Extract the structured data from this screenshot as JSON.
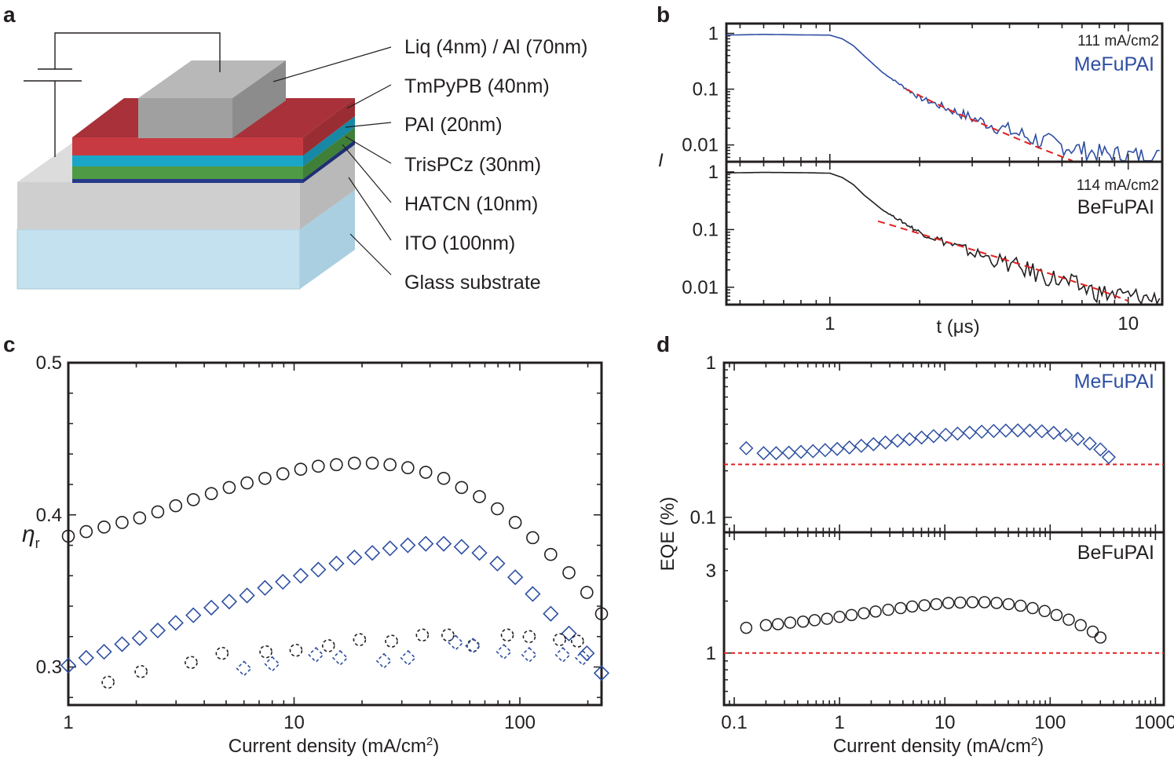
{
  "colors": {
    "blue": "#2e4fa2",
    "black": "#231f20",
    "red": "#e02020"
  },
  "panel_a": {
    "label": "a",
    "layers": [
      {
        "label": "Liq (4nm) / Al (70nm)",
        "color": "#a0a0a0"
      },
      {
        "label": "TmPyPB (40nm)",
        "color": "#c83a41"
      },
      {
        "label": "PAI (20nm)",
        "color": "#1ba6c8"
      },
      {
        "label": "TrisPCz (30nm)",
        "color": "#4f9a45"
      },
      {
        "label": "HATCN (10nm)",
        "color": "#273a8a"
      },
      {
        "label": "ITO (100nm)",
        "color": "#cfcfcf"
      },
      {
        "label": "Glass substrate",
        "color": "#c3e1ef"
      }
    ]
  },
  "chart_data": [
    {
      "panel": "b",
      "type": "line",
      "xlabel": "t (μs)",
      "ylabel": "I",
      "xscale": "log",
      "yscale": "log",
      "xlim": [
        0.45,
        13
      ],
      "ylim": [
        0.005,
        1.5
      ],
      "xticks": [
        1,
        10
      ],
      "yticks": [
        1,
        0.1,
        0.01
      ],
      "subplots": [
        {
          "name": "MeFuPAI",
          "annotation": "111 mA/cm2",
          "color": "#2e4fa2",
          "decay": {
            "t": [
              0.45,
              0.6,
              0.8,
              1.0,
              1.1,
              1.2,
              1.3,
              1.5,
              2.0,
              3.0,
              5.0,
              8.0,
              13.0
            ],
            "I": [
              0.93,
              0.96,
              0.94,
              0.93,
              0.8,
              0.6,
              0.4,
              0.2,
              0.07,
              0.03,
              0.012,
              0.007,
              0.006
            ]
          },
          "fit": {
            "t": [
              1.8,
              2.5,
              3.5,
              5.0,
              6.5
            ],
            "I": [
              0.1,
              0.043,
              0.02,
              0.009,
              0.0052
            ]
          }
        },
        {
          "name": "BeFuPAI",
          "annotation": "114 mA/cm2",
          "color": "#231f20",
          "decay": {
            "t": [
              0.45,
              0.6,
              0.8,
              1.0,
              1.1,
              1.2,
              1.3,
              1.5,
              2.0,
              3.0,
              5.0,
              8.0,
              13.0
            ],
            "I": [
              0.96,
              0.98,
              0.97,
              0.95,
              0.8,
              0.6,
              0.4,
              0.22,
              0.09,
              0.04,
              0.017,
              0.008,
              0.006
            ]
          },
          "fit": {
            "t": [
              1.45,
              2.0,
              3.0,
              5.0,
              8.0,
              10.0
            ],
            "I": [
              0.14,
              0.085,
              0.045,
              0.02,
              0.009,
              0.0058
            ]
          }
        }
      ]
    },
    {
      "panel": "c",
      "type": "scatter",
      "xlabel": "Current density (mA/cm",
      "xlabel_sup": "2",
      "xlabel_end": ")",
      "ylabel": "η",
      "ylabel_sub": "r",
      "xscale": "log",
      "xlim": [
        1,
        230
      ],
      "ylim": [
        0.275,
        0.5
      ],
      "xticks": [
        1,
        10,
        100
      ],
      "yticks": [
        0.3,
        0.4,
        0.5
      ],
      "series": [
        {
          "name": "BeFuPAI",
          "marker": "circle",
          "dashed": false,
          "x": [
            1,
            1.2,
            1.44,
            1.73,
            2.07,
            2.49,
            2.99,
            3.58,
            4.3,
            5.16,
            6.19,
            7.43,
            8.92,
            10.7,
            12.8,
            15.4,
            18.5,
            22.2,
            26.6,
            31.9,
            38.3,
            46,
            55.2,
            66.2,
            79.5,
            95.4,
            114,
            137,
            165,
            198,
            230
          ],
          "y": [
            0.386,
            0.389,
            0.392,
            0.395,
            0.398,
            0.402,
            0.406,
            0.41,
            0.414,
            0.418,
            0.421,
            0.424,
            0.427,
            0.43,
            0.432,
            0.433,
            0.434,
            0.434,
            0.433,
            0.431,
            0.428,
            0.424,
            0.418,
            0.412,
            0.404,
            0.395,
            0.385,
            0.374,
            0.362,
            0.349,
            0.335
          ]
        },
        {
          "name": "MeFuPAI",
          "marker": "diamond",
          "dashed": false,
          "x": [
            1,
            1.2,
            1.44,
            1.73,
            2.07,
            2.49,
            2.99,
            3.58,
            4.3,
            5.16,
            6.19,
            7.43,
            8.92,
            10.7,
            12.8,
            15.4,
            18.5,
            22.2,
            26.6,
            31.9,
            38.3,
            46,
            55.2,
            66.2,
            79.5,
            95.4,
            114,
            137,
            165,
            198,
            230
          ],
          "y": [
            0.301,
            0.306,
            0.31,
            0.315,
            0.319,
            0.324,
            0.329,
            0.334,
            0.339,
            0.343,
            0.347,
            0.352,
            0.356,
            0.36,
            0.364,
            0.368,
            0.372,
            0.375,
            0.378,
            0.38,
            0.381,
            0.381,
            0.379,
            0.375,
            0.368,
            0.359,
            0.348,
            0.335,
            0.322,
            0.309,
            0.296
          ]
        },
        {
          "name": "BeFuPAI",
          "marker": "circle",
          "dashed": true,
          "x": [
            1.5,
            2.1,
            3.5,
            4.8,
            7.5,
            10.2,
            14.2,
            19.5,
            27,
            37,
            48,
            62,
            88,
            110,
            150,
            180
          ],
          "y": [
            0.29,
            0.297,
            0.303,
            0.309,
            0.31,
            0.311,
            0.314,
            0.318,
            0.317,
            0.321,
            0.321,
            0.314,
            0.321,
            0.32,
            0.318,
            0.317
          ]
        },
        {
          "name": "MeFuPAI",
          "marker": "diamond",
          "dashed": true,
          "x": [
            6,
            8,
            12.5,
            16,
            25,
            32,
            52,
            62,
            85,
            110,
            155,
            190
          ],
          "y": [
            0.299,
            0.302,
            0.308,
            0.306,
            0.304,
            0.306,
            0.316,
            0.314,
            0.31,
            0.308,
            0.308,
            0.306
          ]
        }
      ]
    },
    {
      "panel": "d",
      "type": "scatter",
      "xlabel": "Current density (mA/cm",
      "xlabel_sup": "2",
      "xlabel_end": ")",
      "ylabel": "EQE (%)",
      "xscale": "log",
      "yscale": "log",
      "xlim": [
        0.08,
        1200
      ],
      "xticks": [
        0.1,
        1,
        10,
        100,
        1000
      ],
      "subplots": [
        {
          "name": "MeFuPAI",
          "marker": "diamond",
          "color": "#2e4fa2",
          "ylim": [
            0.08,
            1
          ],
          "yticks": [
            1,
            0.1
          ],
          "reference": 0.22,
          "x": [
            0.13,
            0.19,
            0.25,
            0.33,
            0.43,
            0.56,
            0.73,
            0.95,
            1.24,
            1.61,
            2.1,
            2.73,
            3.55,
            4.62,
            6.01,
            7.82,
            10.2,
            13.2,
            17.2,
            22.4,
            29.1,
            37.9,
            49.3,
            64.1,
            83.4,
            108,
            141,
            183,
            238,
            300,
            360
          ],
          "y": [
            0.28,
            0.26,
            0.26,
            0.262,
            0.265,
            0.268,
            0.272,
            0.277,
            0.283,
            0.29,
            0.297,
            0.305,
            0.313,
            0.32,
            0.328,
            0.335,
            0.342,
            0.348,
            0.353,
            0.358,
            0.362,
            0.364,
            0.365,
            0.364,
            0.36,
            0.352,
            0.34,
            0.322,
            0.3,
            0.275,
            0.245
          ]
        },
        {
          "name": "BeFuPAI",
          "marker": "circle",
          "color": "#231f20",
          "ylim": [
            0.5,
            5
          ],
          "yticks": [
            3,
            1
          ],
          "reference": 1,
          "x": [
            0.13,
            0.2,
            0.26,
            0.34,
            0.45,
            0.58,
            0.76,
            1.0,
            1.3,
            1.7,
            2.2,
            2.9,
            3.8,
            4.9,
            6.4,
            8.3,
            10.8,
            14.0,
            18.3,
            23.8,
            31.0,
            40.3,
            52.4,
            68.2,
            88.7,
            115,
            150,
            195,
            254,
            300
          ],
          "y": [
            1.4,
            1.45,
            1.47,
            1.5,
            1.52,
            1.55,
            1.58,
            1.62,
            1.66,
            1.7,
            1.74,
            1.78,
            1.82,
            1.86,
            1.89,
            1.92,
            1.95,
            1.96,
            1.97,
            1.97,
            1.95,
            1.92,
            1.88,
            1.82,
            1.75,
            1.66,
            1.56,
            1.45,
            1.33,
            1.23
          ]
        }
      ]
    }
  ]
}
